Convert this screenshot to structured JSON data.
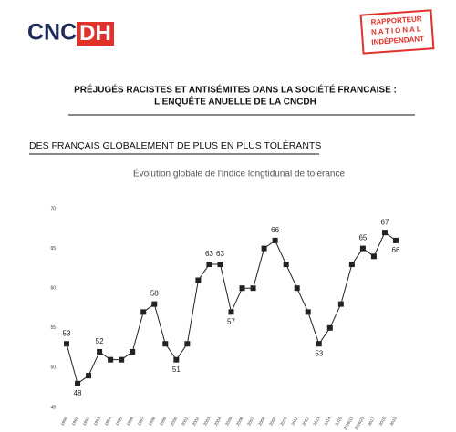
{
  "header": {
    "logo": [
      "CNC",
      "DH"
    ],
    "stamp": [
      "RAPPORTEUR",
      "NATIONAL",
      "INDÉPENDANT"
    ],
    "title": [
      "PRÉJUGÉS RACISTES ET ANTISÉMITES DANS LA SOCIÉTÉ FRANCAISE :",
      "L'ENQUÊTE ANUELLE DE LA CNCDH"
    ]
  },
  "section": "DES FRANÇAIS GLOBALEMENT DE PLUS EN PLUS TOLÉRANTS",
  "chart_data": {
    "type": "line",
    "title": "Évolution globale de l'indice longtidunal de tolérance",
    "categories": [
      "1990",
      "1991",
      "1992",
      "1993",
      "1994",
      "1995",
      "1996",
      "1997",
      "1998",
      "1999",
      "2000",
      "2001",
      "2002",
      "2003",
      "2004",
      "2005",
      "2006",
      "2007",
      "2008",
      "2009",
      "2010",
      "2011",
      "2012",
      "2013",
      "2014",
      "2015",
      "2016(1)",
      "2016(2)",
      "2017",
      "2018",
      "2019"
    ],
    "values": [
      53,
      48,
      49,
      52,
      51,
      51,
      52,
      57,
      58,
      53,
      51,
      53,
      61,
      63,
      63,
      57,
      60,
      60,
      65,
      66,
      63,
      60,
      57,
      53,
      55,
      58,
      63,
      65,
      64,
      67,
      66
    ],
    "value_labels": [
      53,
      48,
      null,
      52,
      null,
      null,
      null,
      null,
      58,
      null,
      51,
      null,
      null,
      63,
      63,
      57,
      null,
      null,
      null,
      66,
      null,
      null,
      null,
      53,
      null,
      null,
      null,
      65,
      null,
      67,
      66
    ],
    "color": "#222222",
    "ylim": [
      45,
      70
    ],
    "yticks": [
      45,
      50,
      55,
      60,
      65,
      70
    ]
  }
}
